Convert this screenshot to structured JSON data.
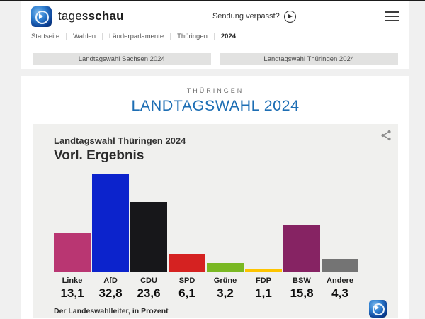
{
  "header": {
    "brand_prefix": "tages",
    "brand_suffix": "schau",
    "missed_show_label": "Sendung verpasst?"
  },
  "breadcrumb": {
    "items": [
      "Startseite",
      "Wahlen",
      "Länderparlamente",
      "Thüringen"
    ],
    "current": "2024"
  },
  "tabs": [
    {
      "label": "Landtagswahl Sachsen 2024"
    },
    {
      "label": "Landtagswahl Thüringen 2024"
    }
  ],
  "page": {
    "kicker": "THÜRINGEN",
    "title": "LANDTAGSWAHL 2024",
    "title_color": "#1d6eb4"
  },
  "chart_data": {
    "type": "bar",
    "title": "Landtagswahl Thüringen 2024",
    "subtitle": "Vorl. Ergebnis",
    "source": "Der Landeswahlleiter, in Prozent",
    "categories": [
      "Linke",
      "AfD",
      "CDU",
      "SPD",
      "Grüne",
      "FDP",
      "BSW",
      "Andere"
    ],
    "values": [
      13.1,
      32.8,
      23.6,
      6.1,
      3.2,
      1.1,
      15.8,
      4.3
    ],
    "value_labels": [
      "13,1",
      "32,8",
      "23,6",
      "6,1",
      "3,2",
      "1,1",
      "15,8",
      "4,3"
    ],
    "colors": [
      "#b93672",
      "#0c23cc",
      "#17171a",
      "#d52221",
      "#7ab823",
      "#fdc400",
      "#862363",
      "#747474"
    ],
    "unit": "Prozent",
    "ylim": [
      0,
      33
    ],
    "grid": false,
    "legend": "none",
    "icons": [
      "share-icon",
      "tagesschau-logo"
    ]
  }
}
